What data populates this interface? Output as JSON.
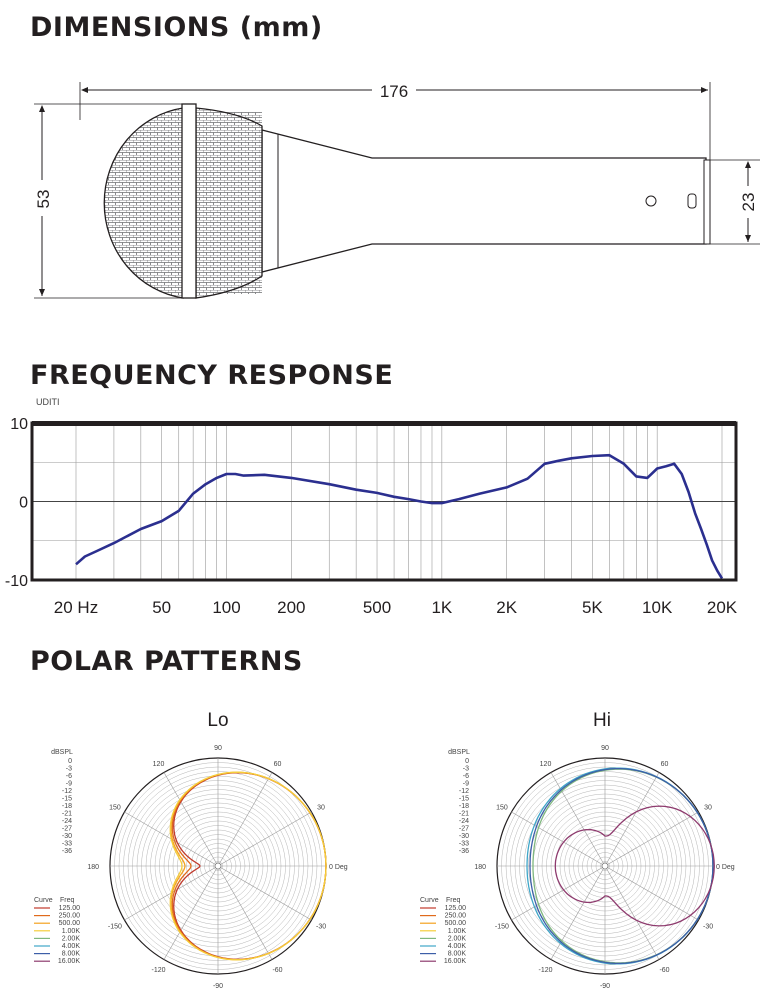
{
  "sections": {
    "dimensions_title": "DIMENSIONS (mm)",
    "frequency_title": "FREQUENCY RESPONSE",
    "polar_title": "POLAR PATTERNS"
  },
  "dimensions": {
    "length": "176",
    "head_diameter": "53",
    "handle_diameter": "23"
  },
  "chart_data": [
    {
      "type": "line",
      "title": "FREQUENCY RESPONSE",
      "ylabel": "UDITI",
      "xlabel": "",
      "x_scale": "log",
      "xlim": [
        20,
        20000
      ],
      "ylim": [
        -10,
        10
      ],
      "x_ticks": [
        {
          "value": 20,
          "label": "20 Hz"
        },
        {
          "value": 50,
          "label": "50"
        },
        {
          "value": 100,
          "label": "100"
        },
        {
          "value": 200,
          "label": "200"
        },
        {
          "value": 500,
          "label": "500"
        },
        {
          "value": 1000,
          "label": "1K"
        },
        {
          "value": 2000,
          "label": "2K"
        },
        {
          "value": 5000,
          "label": "5K"
        },
        {
          "value": 10000,
          "label": "10K"
        },
        {
          "value": 20000,
          "label": "20K"
        }
      ],
      "y_ticks": [
        {
          "value": 10,
          "label": "10"
        },
        {
          "value": 0,
          "label": "0"
        },
        {
          "value": -10,
          "label": "-10"
        }
      ],
      "grid": true,
      "color": "#2b2f8f",
      "x": [
        20,
        22,
        25,
        30,
        40,
        50,
        60,
        70,
        80,
        90,
        100,
        110,
        120,
        150,
        200,
        300,
        400,
        500,
        600,
        700,
        800,
        900,
        1000,
        1200,
        1500,
        2000,
        2500,
        3000,
        3500,
        4000,
        5000,
        6000,
        7000,
        8000,
        9000,
        10000,
        11000,
        12000,
        13000,
        14000,
        15000,
        16000,
        17000,
        18000,
        19000,
        20000
      ],
      "y": [
        -8.0,
        -7.0,
        -6.3,
        -5.3,
        -3.5,
        -2.5,
        -1.2,
        1.0,
        2.2,
        3.0,
        3.5,
        3.5,
        3.3,
        3.4,
        3.0,
        2.2,
        1.5,
        1.1,
        0.6,
        0.3,
        0.0,
        -0.2,
        -0.2,
        0.3,
        1.0,
        1.8,
        2.9,
        4.8,
        5.2,
        5.5,
        5.8,
        5.9,
        4.8,
        3.2,
        3.0,
        4.2,
        4.5,
        4.8,
        3.5,
        1.2,
        -1.5,
        -3.5,
        -5.5,
        -7.5,
        -8.8,
        -9.8
      ]
    },
    {
      "type": "polar",
      "title": "Lo",
      "r_axis_label": "dBSPL",
      "r_ticks": [
        "0",
        "-3",
        "-6",
        "-9",
        "-12",
        "-15",
        "-18",
        "-21",
        "-24",
        "-27",
        "-30",
        "-33",
        "-36"
      ],
      "angle_labels": [
        {
          "angle": 0,
          "label": "0 Deg"
        },
        {
          "angle": 30,
          "label": "30"
        },
        {
          "angle": 60,
          "label": "60"
        },
        {
          "angle": 90,
          "label": "90"
        },
        {
          "angle": 120,
          "label": "120"
        },
        {
          "angle": 150,
          "label": "150"
        },
        {
          "angle": 180,
          "label": "180"
        },
        {
          "angle": -150,
          "label": "-150"
        },
        {
          "angle": -120,
          "label": "-120"
        },
        {
          "angle": -90,
          "label": "-90"
        },
        {
          "angle": -60,
          "label": "-60"
        },
        {
          "angle": -30,
          "label": "-30"
        }
      ],
      "legend_headers": [
        "Curve",
        "Freq"
      ],
      "series": [
        {
          "name": "125.00",
          "color": "#c0392b",
          "shape": "cardioid",
          "rear_db": -30
        },
        {
          "name": "250.00",
          "color": "#e06a1b",
          "shape": "cardioid",
          "rear_db": -27
        },
        {
          "name": "500.00",
          "color": "#f3a21f",
          "shape": "cardioid",
          "rear_db": -25
        },
        {
          "name": "1.00K",
          "color": "#f5cd3a",
          "shape": "cardioid",
          "rear_db": -24
        }
      ]
    },
    {
      "type": "polar",
      "title": "Hi",
      "r_axis_label": "dBSPL",
      "r_ticks": [
        "0",
        "-3",
        "-6",
        "-9",
        "-12",
        "-15",
        "-18",
        "-21",
        "-24",
        "-27",
        "-30",
        "-33",
        "-36"
      ],
      "angle_labels": [
        {
          "angle": 0,
          "label": "0 Deg"
        },
        {
          "angle": 30,
          "label": "30"
        },
        {
          "angle": 60,
          "label": "60"
        },
        {
          "angle": 90,
          "label": "90"
        },
        {
          "angle": 120,
          "label": "120"
        },
        {
          "angle": 150,
          "label": "150"
        },
        {
          "angle": 180,
          "label": "180"
        },
        {
          "angle": -150,
          "label": "-150"
        },
        {
          "angle": -120,
          "label": "-120"
        },
        {
          "angle": -90,
          "label": "-90"
        },
        {
          "angle": -60,
          "label": "-60"
        },
        {
          "angle": -30,
          "label": "-30"
        }
      ],
      "legend_headers": [
        "Curve",
        "Freq"
      ],
      "series": [
        {
          "name": "2.00K",
          "color": "#7fb77e",
          "shape": "cardioid",
          "rear_db": -12
        },
        {
          "name": "4.00K",
          "color": "#3fa6c8",
          "shape": "cardioid",
          "rear_db": -10
        },
        {
          "name": "8.00K",
          "color": "#3d5fa8",
          "shape": "cardioid",
          "rear_db": -11
        },
        {
          "name": "16.00K",
          "color": "#8e3b6e",
          "shape": "narrow",
          "rear_db": -24
        }
      ]
    }
  ],
  "legend_all": [
    {
      "name": "125.00",
      "color": "#c0392b"
    },
    {
      "name": "250.00",
      "color": "#e06a1b"
    },
    {
      "name": "500.00",
      "color": "#f3a21f"
    },
    {
      "name": "1.00K",
      "color": "#f5cd3a"
    },
    {
      "name": "2.00K",
      "color": "#7fb77e"
    },
    {
      "name": "4.00K",
      "color": "#3fa6c8"
    },
    {
      "name": "8.00K",
      "color": "#3d5fa8"
    },
    {
      "name": "16.00K",
      "color": "#8e3b6e"
    }
  ]
}
